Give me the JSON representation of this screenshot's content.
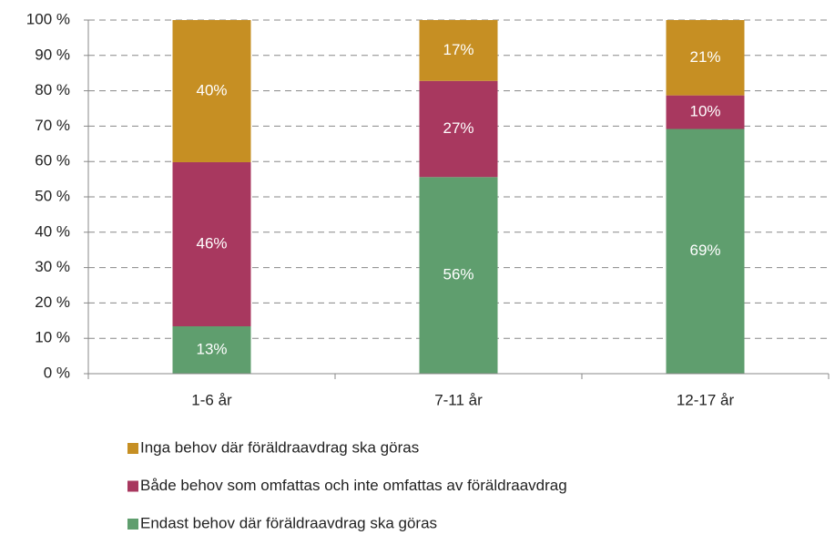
{
  "chart_data": {
    "type": "stacked_bar",
    "categories": [
      "1-6 år",
      "7-11 år",
      "12-17 år"
    ],
    "series": [
      {
        "name": "Endast behov där föräldraavdrag ska göras",
        "color": "#5f9e6e",
        "values": [
          13.4,
          55.6,
          69.2
        ],
        "value_labels": [
          "13%",
          "56%",
          "69%"
        ]
      },
      {
        "name": "Både behov som omfattas och inte omfattas av föräldraavdrag",
        "color": "#a8385f",
        "values": [
          46.4,
          27.2,
          9.5
        ],
        "value_labels": [
          "46%",
          "27%",
          "10%"
        ]
      },
      {
        "name": "Inga behov där föräldraavdrag ska göras",
        "color": "#c68f23",
        "values": [
          40.2,
          17.2,
          21.3
        ],
        "value_labels": [
          "40%",
          "17%",
          "21%"
        ]
      }
    ],
    "ylim": [
      0,
      100
    ],
    "yticks": [
      {
        "value": 0,
        "label": "0 %"
      },
      {
        "value": 10,
        "label": "10 %"
      },
      {
        "value": 20,
        "label": "20 %"
      },
      {
        "value": 30,
        "label": "30 %"
      },
      {
        "value": 40,
        "label": "40 %"
      },
      {
        "value": 50,
        "label": "50 %"
      },
      {
        "value": 60,
        "label": "60 %"
      },
      {
        "value": 70,
        "label": "70 %"
      },
      {
        "value": 80,
        "label": "80 %"
      },
      {
        "value": 90,
        "label": "90 %"
      },
      {
        "value": 100,
        "label": "100 %"
      }
    ],
    "grid": true
  }
}
